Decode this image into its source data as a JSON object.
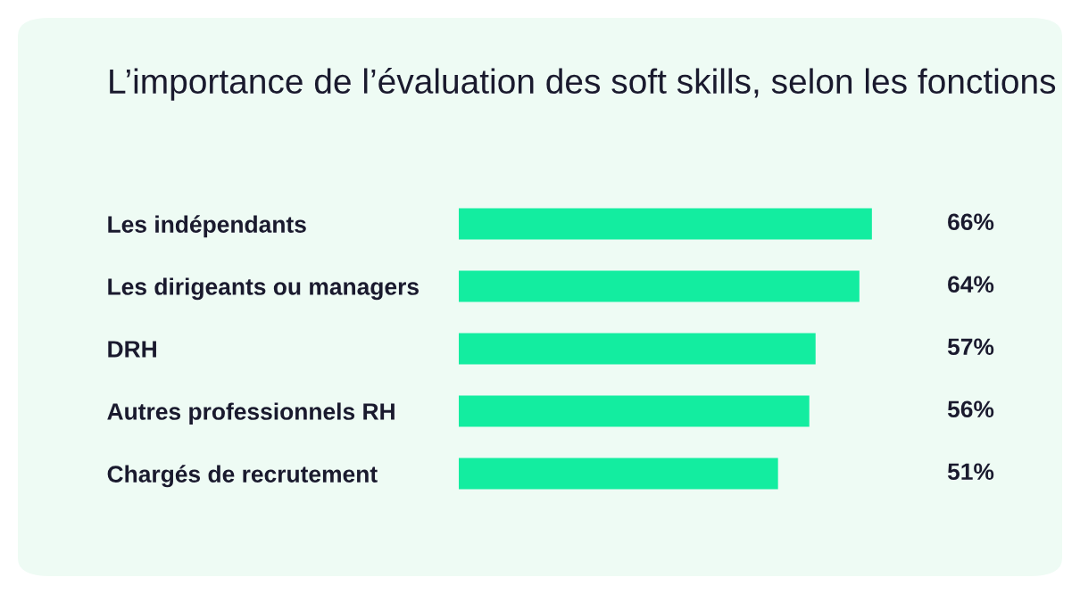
{
  "chart_data": {
    "type": "bar",
    "orientation": "horizontal",
    "title": "L’importance de l’évaluation des soft skills, selon les fonctions",
    "categories": [
      "Les indépendants",
      "Les dirigeants ou managers",
      "DRH",
      "Autres professionnels RH",
      "Chargés de recrutement"
    ],
    "values": [
      66,
      64,
      57,
      56,
      51
    ],
    "value_labels": [
      "66%",
      "64%",
      "57%",
      "56%",
      "51%"
    ],
    "color": "#13eda0",
    "grid": false,
    "legend": false
  }
}
